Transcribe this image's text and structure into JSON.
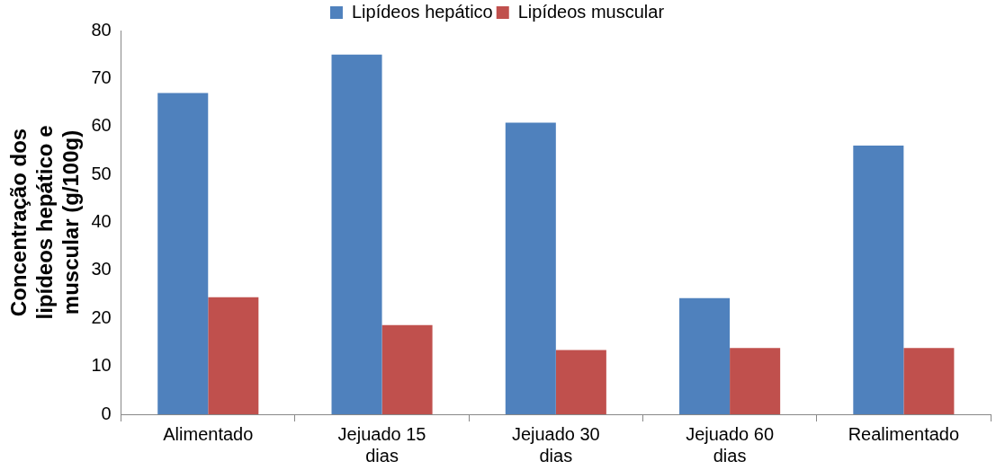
{
  "chart_data": {
    "type": "bar",
    "ylabel": "Concentração dos lipídeos hepático e muscular (g/100g)",
    "categories": [
      "Alimentado",
      "Jejuado 15 dias",
      "Jejuado 30 dias",
      "Jejuado 60 dias",
      "Realimentado"
    ],
    "series": [
      {
        "name": "Lipídeos hepático",
        "color": "#4f81bd",
        "values": [
          67,
          75,
          60.8,
          24.2,
          56
        ]
      },
      {
        "name": "Lipídeos muscular",
        "color": "#c0504d",
        "values": [
          24.4,
          18.6,
          13.4,
          13.8,
          13.8
        ]
      }
    ],
    "ylim": [
      0,
      80
    ],
    "yticks": [
      0,
      10,
      20,
      30,
      40,
      50,
      60,
      70,
      80
    ],
    "grid": false,
    "legend": "top"
  }
}
